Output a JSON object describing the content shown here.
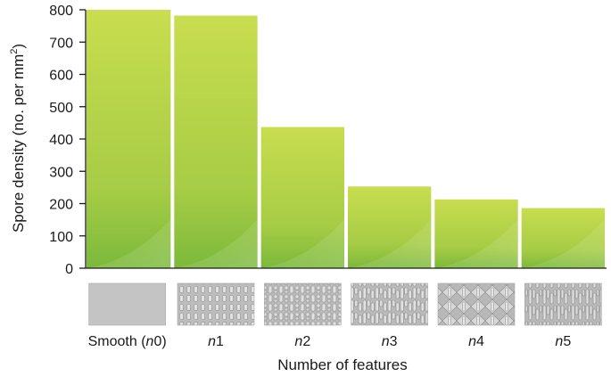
{
  "chart_data": {
    "type": "bar",
    "categories": [
      {
        "prefix": "Smooth (",
        "italic": "n",
        "suffix": "0)"
      },
      {
        "prefix": "",
        "italic": "n",
        "suffix": "1"
      },
      {
        "prefix": "",
        "italic": "n",
        "suffix": "2"
      },
      {
        "prefix": "",
        "italic": "n",
        "suffix": "3"
      },
      {
        "prefix": "",
        "italic": "n",
        "suffix": "4"
      },
      {
        "prefix": "",
        "italic": "n",
        "suffix": "5"
      }
    ],
    "values": [
      800,
      782,
      437,
      253,
      213,
      186
    ],
    "ylim": [
      0,
      800
    ],
    "yticks": [
      0,
      100,
      200,
      300,
      400,
      500,
      600,
      700,
      800
    ],
    "xlabel": "Number of features",
    "ylabel": {
      "text": "Spore density (no. per mm",
      "superscript": "2",
      "close": ")"
    },
    "grid": false,
    "legend": "none",
    "colors": {
      "bar_top": "#c8dc4e",
      "bar_bottom": "#78b83a",
      "axis": "#1a1a1a",
      "thumb": "#c4c4c4"
    },
    "texture_thumbnails": [
      "smooth",
      "n1-pattern",
      "n2-pattern",
      "n3-pattern",
      "n4-pattern",
      "n5-pattern"
    ]
  }
}
